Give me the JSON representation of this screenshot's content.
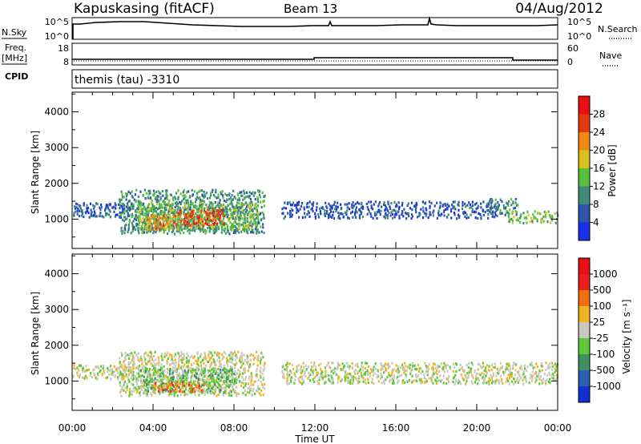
{
  "header": {
    "station": "Kapuskasing (fitACF)",
    "beam": "Beam 13",
    "date": "04/Aug/2012"
  },
  "status_panels": {
    "nsky": {
      "left_label": "N.Sky",
      "left_ticks": [
        "10^5",
        "10^0"
      ],
      "right_ticks": [
        "10^5",
        "10^0"
      ],
      "right_label": "N.Search"
    },
    "freq": {
      "left_label_1": "Freq.",
      "left_label_2": "[MHz]",
      "left_ticks": [
        "18",
        "8"
      ],
      "right_ticks": [
        "60",
        "0"
      ],
      "right_label": "Nave"
    },
    "cpid": {
      "left_label": "CPID",
      "value": "themis (tau) -3310"
    }
  },
  "x_axis": {
    "label": "Time UT",
    "ticks": [
      "00:00",
      "04:00",
      "08:00",
      "12:00",
      "16:00",
      "20:00",
      "00:00"
    ]
  },
  "chart_data": [
    {
      "type": "heatmap",
      "panel": "power",
      "ylabel": "Slant Range [km]",
      "yticks": [
        "1000",
        "2000",
        "3000",
        "4000"
      ],
      "ylim": [
        180,
        4550
      ],
      "xlim": [
        0,
        24
      ],
      "colorbar": {
        "label": "Power [dB]",
        "ticks": [
          "4",
          "8",
          "12",
          "16",
          "20",
          "24",
          "28"
        ],
        "colors": [
          "#1a2ee8",
          "#2a55a8",
          "#3e8c78",
          "#56c03c",
          "#d9c21e",
          "#f08a14",
          "#e23a10",
          "#e81010"
        ]
      },
      "regions": [
        {
          "t0": 0.0,
          "t1": 3.0,
          "r0": 1080,
          "r1": 1480,
          "level": 1
        },
        {
          "t0": 2.3,
          "t1": 9.5,
          "r0": 620,
          "r1": 1850,
          "level": 2
        },
        {
          "t0": 3.2,
          "t1": 9.2,
          "r0": 700,
          "r1": 1500,
          "level": 3
        },
        {
          "t0": 3.6,
          "t1": 5.2,
          "r0": 720,
          "r1": 1150,
          "level": 5
        },
        {
          "t0": 5.2,
          "t1": 7.5,
          "r0": 850,
          "r1": 1300,
          "level": 6
        },
        {
          "t0": 10.3,
          "t1": 21.0,
          "r0": 1050,
          "r1": 1520,
          "level": 1
        },
        {
          "t0": 20.5,
          "t1": 22.0,
          "r0": 1150,
          "r1": 1600,
          "level": 2
        },
        {
          "t0": 21.5,
          "t1": 24.0,
          "r0": 920,
          "r1": 1250,
          "level": 3
        }
      ]
    },
    {
      "type": "heatmap",
      "panel": "velocity",
      "ylabel": "Slant Range [km]",
      "yticks": [
        "1000",
        "2000",
        "3000",
        "4000"
      ],
      "ylim": [
        180,
        4550
      ],
      "xlim": [
        0,
        24
      ],
      "colorbar": {
        "label": "Velocity [m s⁻¹]",
        "ticks": [
          "1000",
          "500",
          "100",
          "25",
          "-25",
          "-100",
          "-500",
          "-1000"
        ],
        "colors": [
          "#1030d0",
          "#2a60b0",
          "#3e9060",
          "#5cc83c",
          "#c8c8c0",
          "#f0b420",
          "#f07010",
          "#e82020",
          "#e81010"
        ]
      },
      "regions": [
        {
          "t0": 0.0,
          "t1": 3.0,
          "r0": 1080,
          "r1": 1480,
          "level": 4
        },
        {
          "t0": 2.3,
          "t1": 9.5,
          "r0": 620,
          "r1": 1850,
          "level": 4
        },
        {
          "t0": 3.2,
          "t1": 8.0,
          "r0": 700,
          "r1": 1400,
          "level": 3
        },
        {
          "t0": 4.0,
          "t1": 6.5,
          "r0": 720,
          "r1": 1000,
          "level": 6
        },
        {
          "t0": 10.3,
          "t1": 24.0,
          "r0": 950,
          "r1": 1550,
          "level": 4
        }
      ]
    }
  ]
}
